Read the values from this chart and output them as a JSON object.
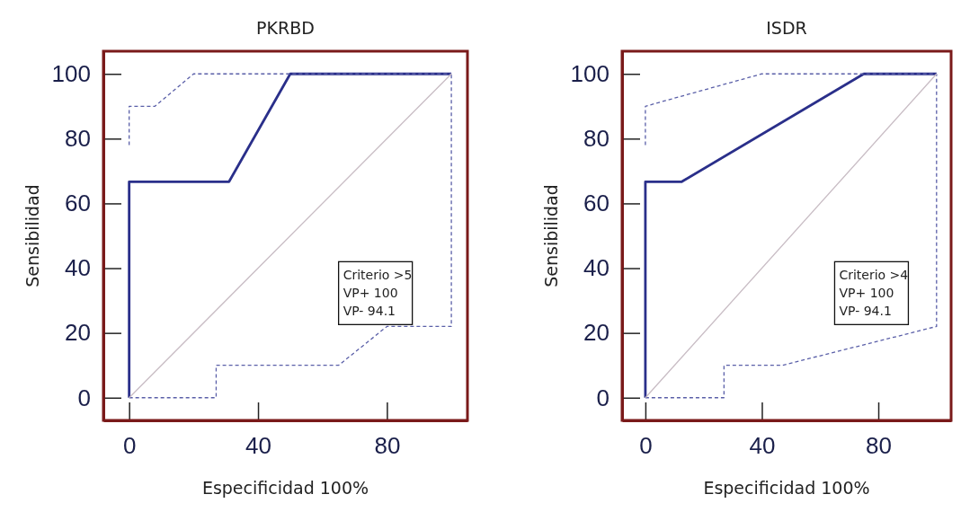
{
  "chart_data": [
    {
      "type": "line",
      "title": "PKRBD",
      "xlabel": "Especificidad 100%",
      "ylabel": "Sensibilidad",
      "xlim": [
        -8,
        105
      ],
      "ylim": [
        -7,
        107
      ],
      "xticks": [
        0,
        40,
        80
      ],
      "yticks": [
        0,
        20,
        40,
        60,
        80,
        100
      ],
      "series": [
        {
          "color": "#2a2f8a",
          "line_style": "solid",
          "x": [
            0,
            0,
            31,
            50,
            100
          ],
          "values": [
            0,
            66.7,
            66.7,
            100,
            100
          ]
        },
        {
          "color": "#5a5fa8",
          "line_style": "dashed",
          "x": [
            0,
            0,
            8,
            20,
            100,
            100
          ],
          "values": [
            78,
            90,
            90,
            100,
            100,
            100
          ]
        },
        {
          "color": "#5a5fa8",
          "line_style": "dashed",
          "x": [
            0,
            27,
            27,
            65,
            80,
            100,
            100
          ],
          "values": [
            0,
            0,
            10,
            10,
            22,
            22,
            100
          ]
        },
        {
          "color": "#c8bcc4",
          "line_style": "solid",
          "x": [
            0,
            100
          ],
          "values": [
            0,
            100
          ]
        }
      ],
      "annotations": [
        "Criterio >5",
        "VP+ 100",
        "VP- 94.1"
      ]
    },
    {
      "type": "line",
      "title": "ISDR",
      "xlabel": "Especificidad 100%",
      "ylabel": "Sensibilidad",
      "xlim": [
        -8,
        105
      ],
      "ylim": [
        -7,
        107
      ],
      "xticks": [
        0,
        40,
        80
      ],
      "yticks": [
        0,
        20,
        40,
        60,
        80,
        100
      ],
      "series": [
        {
          "color": "#2a2f8a",
          "line_style": "solid",
          "x": [
            0,
            0,
            12.5,
            75,
            100
          ],
          "values": [
            0,
            66.7,
            66.7,
            100,
            100
          ]
        },
        {
          "color": "#5a5fa8",
          "line_style": "dashed",
          "x": [
            0,
            0,
            40,
            100,
            100
          ],
          "values": [
            78,
            90,
            100,
            100,
            100
          ]
        },
        {
          "color": "#5a5fa8",
          "line_style": "dashed",
          "x": [
            0,
            27,
            27,
            47,
            100,
            100
          ],
          "values": [
            0,
            0,
            10,
            10,
            22,
            100
          ]
        },
        {
          "color": "#c8bcc4",
          "line_style": "solid",
          "x": [
            0,
            100
          ],
          "values": [
            0,
            100
          ]
        }
      ],
      "annotations": [
        "Criterio >4",
        "VP+ 100",
        "VP- 94.1"
      ]
    }
  ]
}
